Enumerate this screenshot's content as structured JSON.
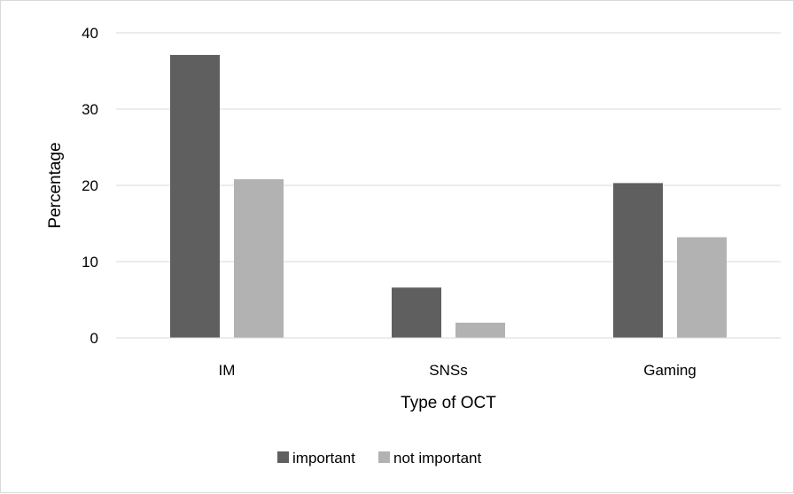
{
  "chart_data": {
    "type": "bar",
    "categories": [
      "IM",
      "SNSs",
      "Gaming"
    ],
    "series": [
      {
        "name": "important",
        "values": [
          37.1,
          6.6,
          20.3
        ],
        "color": "#5f5f5f"
      },
      {
        "name": "not important",
        "values": [
          20.8,
          2.0,
          13.2
        ],
        "color": "#b2b2b2"
      }
    ],
    "title": "",
    "xlabel": "Type of OCT",
    "ylabel": "Percentage",
    "ylim": [
      0,
      40
    ],
    "yticks": [
      "0",
      "10",
      "20",
      "30",
      "40"
    ],
    "grid": true,
    "legend_position": "bottom"
  }
}
